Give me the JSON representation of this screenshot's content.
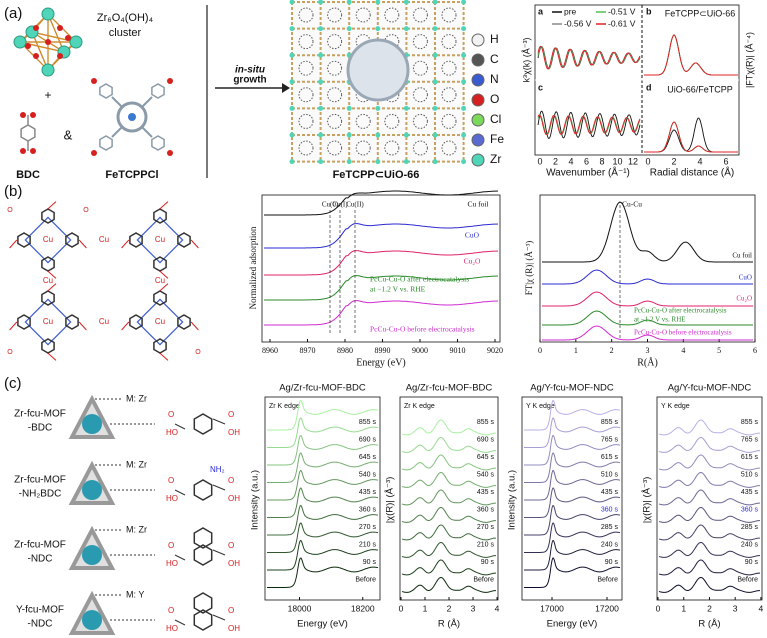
{
  "panel_a": {
    "label": "(a)",
    "cluster_label": "Zr₆O₄(OH)₄",
    "cluster_sub": "cluster",
    "plus": "+",
    "amp": "&",
    "bdc": "BDC",
    "fetcppcl": "FeTCPPCl",
    "arrow_top": "in-situ",
    "arrow_bottom": "growth",
    "product": "FeTCPP⊂UiO-66",
    "elements": [
      "H",
      "C",
      "N",
      "O",
      "Cl",
      "Fe",
      "Zr"
    ],
    "exafs": {
      "legend": [
        "pre",
        "-0.51 V",
        "-0.56 V",
        "-0.61 V"
      ],
      "panel_labels": [
        "a",
        "b",
        "c",
        "d"
      ],
      "title_b": "FeTCPP⊂UiO-66",
      "title_d": "UiO-66/FeTCPP",
      "x_label_left": "Wavenumber (Å⁻¹)",
      "x_label_right": "Radial distance (Å)",
      "y_label_left": "k³χ(k) (Å⁻³)",
      "y_label_right": "|FTχ(R)| (Å⁻⁴)",
      "xticks_left": [
        "0",
        "2",
        "4",
        "6",
        "8",
        "10",
        "12"
      ],
      "xticks_right": [
        "0",
        "2",
        "4",
        "6"
      ]
    }
  },
  "panel_b": {
    "label": "(b)",
    "molecule": {
      "metal": "Cu",
      "o": "O"
    },
    "xanes": {
      "xticks": [
        "8960",
        "8970",
        "8980",
        "8990",
        "9000",
        "9010",
        "9020"
      ],
      "x_label": "Energy (eV)",
      "y_label": "Normalized adsorption",
      "markers": [
        "Cu(0)",
        "Cu(I)",
        "Cu(II)"
      ],
      "curves": [
        "Cu foil",
        "CuO",
        "Cu₂O",
        "PcCu-Cu-O after electrocatalysis",
        "at −1.2 V vs. RHE",
        "PcCu-Cu-O before electrocatalysis"
      ]
    },
    "exafs": {
      "xticks": [
        "0",
        "1",
        "2",
        "3",
        "4",
        "5",
        "6"
      ],
      "x_label": "R(Å)",
      "y_label": "FT|χ (R)| (Å⁻³)",
      "peak": "Cu-Cu",
      "curves": [
        "Cu foil",
        "CuO",
        "Cu₂O",
        "PcCu-Cu-O after electrocatalysis",
        "at −1.2 V vs. RHE",
        "PcCu-Cu-O before electrocatalysis"
      ]
    }
  },
  "panel_c": {
    "label": "(c)",
    "atoms": {
      "o": "O",
      "oh": "OH",
      "ho": "HO",
      "nh2": "NH₂"
    },
    "mofs": [
      {
        "name": "Zr-fcu-MOF",
        "suffix": "-BDC",
        "metal": "M: Zr"
      },
      {
        "name": "Zr-fcu-MOF",
        "suffix": "-NH₂BDC",
        "metal": "M: Zr"
      },
      {
        "name": "Zr-fcu-MOF",
        "suffix": "-NDC",
        "metal": "M: Zr"
      },
      {
        "name": "Y-fcu-MOF",
        "suffix": "-NDC",
        "metal": "M: Y"
      }
    ],
    "charts": [
      {
        "title": "Ag/Zr-fcu-MOF-BDC",
        "edge": "Zr K edge",
        "times": [
          "855 s",
          "690 s",
          "645 s",
          "540 s",
          "435 s",
          "360 s",
          "270 s",
          "210 s",
          "90 s",
          "Before"
        ],
        "xticks": [
          "18000",
          "18200"
        ],
        "x_label": "Energy (eV)",
        "y_label": "Intensity (a.u.)"
      },
      {
        "title": "Ag/Zr-fcu-MOF-BDC",
        "edge": "Zr K edge",
        "times": [
          "855 s",
          "690 s",
          "645 s",
          "540 s",
          "435 s",
          "360 s",
          "270 s",
          "210 s",
          "90 s",
          "Before"
        ],
        "xticks": [
          "0",
          "1",
          "2",
          "3",
          "4"
        ],
        "x_label": "R (Å)",
        "y_label": "|χ(R)| (Å⁻³)"
      },
      {
        "title": "Ag/Y-fcu-MOF-NDC",
        "edge": "Y K edge",
        "times": [
          "855 s",
          "765 s",
          "615 s",
          "510 s",
          "435 s",
          "360 s",
          "285 s",
          "240 s",
          "90 s",
          "Before"
        ],
        "xticks": [
          "17000",
          "17200"
        ],
        "x_label": "Energy (eV)",
        "y_label": "Intensity (a.u.)"
      },
      {
        "title": "Ag/Y-fcu-MOF-NDC",
        "edge": "Y K edge",
        "times": [
          "855 s",
          "765 s",
          "615 s",
          "510 s",
          "435 s",
          "360 s",
          "285 s",
          "240 s",
          "90 s",
          "Before"
        ],
        "xticks": [
          "0",
          "1",
          "2",
          "3",
          "4"
        ],
        "x_label": "R (Å)",
        "y_label": "|χ(R)| (Å⁻³)"
      }
    ]
  }
}
